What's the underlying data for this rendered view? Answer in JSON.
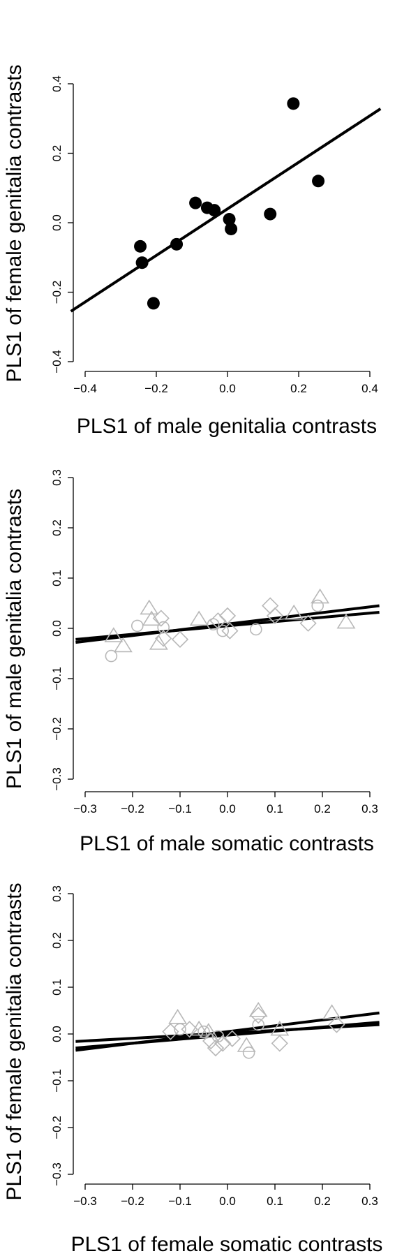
{
  "chart_data": [
    {
      "type": "scatter",
      "xlabel": "PLS1 of male genitalia contrasts",
      "ylabel": "PLS1 of female genitalia contrasts",
      "xlim": [
        -0.4,
        0.4
      ],
      "ylim": [
        -0.4,
        0.4
      ],
      "xticks": [
        -0.4,
        -0.2,
        0.0,
        0.2,
        0.4
      ],
      "yticks": [
        -0.4,
        -0.2,
        0.0,
        0.2,
        0.4
      ],
      "xtick_labels": [
        "−0.4",
        "−0.2",
        "0.0",
        "0.2",
        "0.4"
      ],
      "ytick_labels": [
        "−0.4",
        "−0.2",
        "0.0",
        "0.2",
        "0.4"
      ],
      "point_color": "#000000",
      "series": [
        {
          "marker": "filled-circle",
          "points": [
            {
              "x": -0.245,
              "y": -0.068
            },
            {
              "x": -0.24,
              "y": -0.115
            },
            {
              "x": -0.208,
              "y": -0.232
            },
            {
              "x": -0.143,
              "y": -0.062
            },
            {
              "x": -0.09,
              "y": 0.057
            },
            {
              "x": -0.057,
              "y": 0.043
            },
            {
              "x": -0.037,
              "y": 0.036
            },
            {
              "x": 0.005,
              "y": 0.01
            },
            {
              "x": 0.01,
              "y": -0.018
            },
            {
              "x": 0.12,
              "y": 0.025
            },
            {
              "x": 0.185,
              "y": 0.343
            },
            {
              "x": 0.255,
              "y": 0.12
            }
          ]
        }
      ],
      "fit_lines": [
        {
          "x": [
            -0.44,
            0.43
          ],
          "y": [
            -0.255,
            0.328
          ]
        }
      ]
    },
    {
      "type": "scatter",
      "xlabel": "PLS1 of male somatic contrasts",
      "ylabel": "PLS1 of male genitalia contrasts",
      "xlim": [
        -0.3,
        0.3
      ],
      "ylim": [
        -0.3,
        0.3
      ],
      "xticks": [
        -0.3,
        -0.2,
        -0.1,
        0.0,
        0.1,
        0.2,
        0.3
      ],
      "yticks": [
        -0.3,
        -0.2,
        -0.1,
        0.0,
        0.1,
        0.2,
        0.3
      ],
      "xtick_labels": [
        "−0.3",
        "−0.2",
        "−0.1",
        "0.0",
        "0.1",
        "0.2",
        "0.3"
      ],
      "ytick_labels": [
        "−0.3",
        "−0.2",
        "−0.1",
        "0.0",
        "0.1",
        "0.2",
        "0.3"
      ],
      "point_color": "#b8b8b8",
      "series": [
        {
          "marker": "open-circle",
          "points": [
            {
              "x": -0.245,
              "y": -0.055
            },
            {
              "x": -0.19,
              "y": 0.005
            },
            {
              "x": -0.135,
              "y": 0.002
            },
            {
              "x": -0.03,
              "y": 0.008
            },
            {
              "x": -0.01,
              "y": -0.005
            },
            {
              "x": 0.06,
              "y": -0.002
            },
            {
              "x": 0.19,
              "y": 0.045
            }
          ]
        },
        {
          "marker": "open-triangle",
          "points": [
            {
              "x": -0.24,
              "y": -0.015
            },
            {
              "x": -0.22,
              "y": -0.035
            },
            {
              "x": -0.165,
              "y": 0.04
            },
            {
              "x": -0.16,
              "y": 0.018
            },
            {
              "x": -0.145,
              "y": -0.03
            },
            {
              "x": -0.06,
              "y": 0.018
            },
            {
              "x": 0.14,
              "y": 0.03
            },
            {
              "x": 0.195,
              "y": 0.062
            },
            {
              "x": 0.25,
              "y": 0.012
            }
          ]
        },
        {
          "marker": "open-diamond",
          "points": [
            {
              "x": -0.14,
              "y": 0.02
            },
            {
              "x": -0.135,
              "y": -0.02
            },
            {
              "x": -0.1,
              "y": -0.022
            },
            {
              "x": -0.02,
              "y": 0.015
            },
            {
              "x": 0.0,
              "y": 0.025
            },
            {
              "x": 0.005,
              "y": -0.005
            },
            {
              "x": 0.09,
              "y": 0.045
            },
            {
              "x": 0.1,
              "y": 0.025
            },
            {
              "x": 0.17,
              "y": 0.01
            }
          ]
        }
      ],
      "fit_lines": [
        {
          "x": [
            -0.32,
            0.32
          ],
          "y": [
            -0.028,
            0.045
          ]
        },
        {
          "x": [
            -0.32,
            0.32
          ],
          "y": [
            -0.022,
            0.032
          ]
        }
      ]
    },
    {
      "type": "scatter",
      "xlabel": "PLS1 of female somatic contrasts",
      "ylabel": "PLS1 of female genitalia contrasts",
      "xlim": [
        -0.3,
        0.3
      ],
      "ylim": [
        -0.3,
        0.3
      ],
      "xticks": [
        -0.3,
        -0.2,
        -0.1,
        0.0,
        0.1,
        0.2,
        0.3
      ],
      "yticks": [
        -0.3,
        -0.2,
        -0.1,
        0.0,
        0.1,
        0.2,
        0.3
      ],
      "xtick_labels": [
        "−0.3",
        "−0.2",
        "−0.1",
        "0.0",
        "0.1",
        "0.2",
        "0.3"
      ],
      "ytick_labels": [
        "−0.3",
        "−0.2",
        "−0.1",
        "0.0",
        "0.1",
        "0.2",
        "0.3"
      ],
      "point_color": "#b8b8b8",
      "series": [
        {
          "marker": "open-circle",
          "points": [
            {
              "x": -0.1,
              "y": 0.01
            },
            {
              "x": -0.05,
              "y": 0.005
            },
            {
              "x": -0.02,
              "y": -0.005
            },
            {
              "x": 0.045,
              "y": -0.04
            },
            {
              "x": 0.065,
              "y": 0.02
            }
          ]
        },
        {
          "marker": "open-triangle",
          "points": [
            {
              "x": -0.105,
              "y": 0.035
            },
            {
              "x": -0.06,
              "y": 0.01
            },
            {
              "x": -0.04,
              "y": 0.005
            },
            {
              "x": 0.04,
              "y": -0.025
            },
            {
              "x": 0.065,
              "y": 0.05
            },
            {
              "x": 0.11,
              "y": 0.01
            },
            {
              "x": 0.22,
              "y": 0.045
            }
          ]
        },
        {
          "marker": "open-diamond",
          "points": [
            {
              "x": -0.12,
              "y": 0.005
            },
            {
              "x": -0.08,
              "y": 0.01
            },
            {
              "x": -0.035,
              "y": -0.015
            },
            {
              "x": -0.025,
              "y": -0.03
            },
            {
              "x": -0.01,
              "y": -0.02
            },
            {
              "x": 0.01,
              "y": -0.01
            },
            {
              "x": 0.065,
              "y": 0.04
            },
            {
              "x": 0.11,
              "y": -0.02
            },
            {
              "x": 0.23,
              "y": 0.02
            }
          ]
        }
      ],
      "fit_lines": [
        {
          "x": [
            -0.32,
            0.32
          ],
          "y": [
            -0.035,
            0.045
          ]
        },
        {
          "x": [
            -0.32,
            0.32
          ],
          "y": [
            -0.03,
            0.025
          ]
        },
        {
          "x": [
            -0.32,
            0.32
          ],
          "y": [
            -0.016,
            0.02
          ]
        }
      ]
    }
  ]
}
